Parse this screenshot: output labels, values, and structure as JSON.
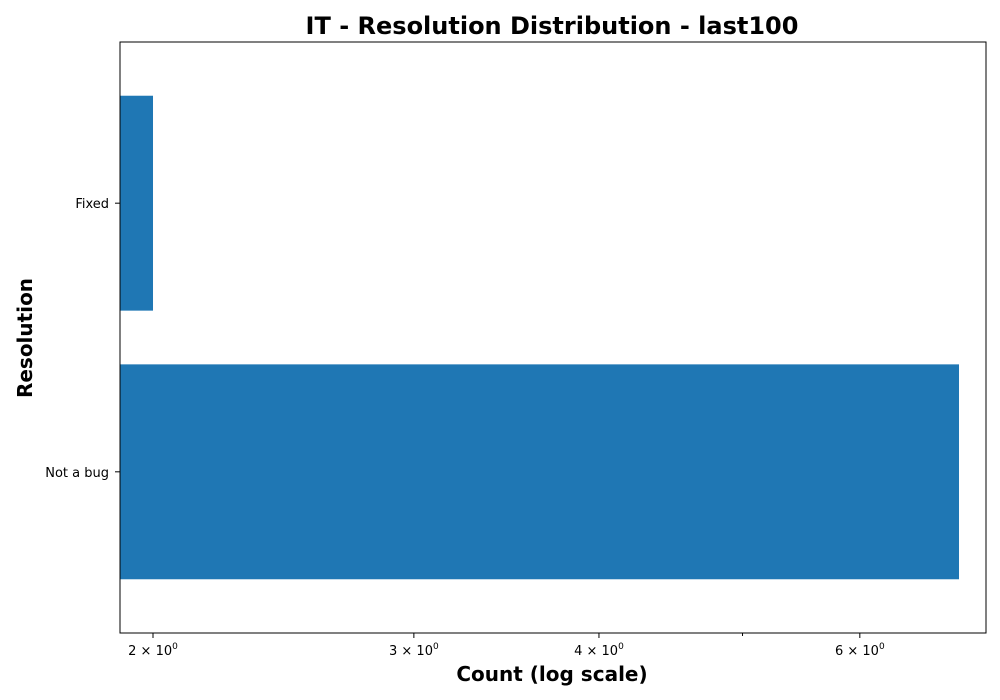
{
  "chart_data": {
    "type": "bar",
    "orientation": "horizontal",
    "title": "IT - Resolution Distribution - last100",
    "xlabel": "Count (log scale)",
    "ylabel": "Resolution",
    "x_scale": "log",
    "xlim": [
      1.9,
      7.3
    ],
    "categories": [
      "Fixed",
      "Not a bug"
    ],
    "values": [
      2,
      7
    ],
    "bar_color": "#1f77b4",
    "x_major_ticks": [
      {
        "value": 2,
        "base": "2 × 10",
        "exp": "0"
      },
      {
        "value": 3,
        "base": "3 × 10",
        "exp": "0"
      },
      {
        "value": 4,
        "base": "4 × 10",
        "exp": "0"
      },
      {
        "value": 6,
        "base": "6 × 10",
        "exp": "0"
      }
    ],
    "x_minor_ticks": [
      5
    ],
    "grid": false,
    "legend": "none"
  }
}
